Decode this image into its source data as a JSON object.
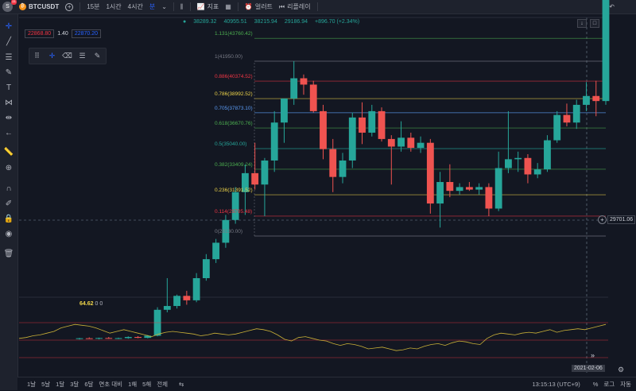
{
  "topbar": {
    "avatar_letter": "S",
    "avatar_badge": "11",
    "symbol": "BTCUSDT",
    "timeframes": [
      "15분",
      "1시간",
      "4시간",
      "분"
    ],
    "indicators_label": "지표",
    "alert_label": "얼러트",
    "replay_label": "리플레이"
  },
  "inputs": {
    "price_red": "22868.80",
    "ratio": "1.40",
    "price_blue": "22870.20"
  },
  "ohlc": {
    "values": [
      "38289.32",
      "40955.51",
      "38215.94",
      "29186.94",
      "+896.70 (+2.34%)"
    ]
  },
  "fib_levels": [
    {
      "label": "1.131(43760.42)",
      "price": 43760.42,
      "color": "#4caf50"
    },
    {
      "label": "1(41950.00)",
      "price": 41950.0,
      "color": "#787b86"
    },
    {
      "label": "0.886(40374.52)",
      "price": 40374.52,
      "color": "#f23645"
    },
    {
      "label": "0.786(38992.52)",
      "price": 38992.52,
      "color": "#f0d64a"
    },
    {
      "label": "0.705(37873.10)",
      "price": 37873.1,
      "color": "#5b9cf6"
    },
    {
      "label": "0.618(36670.76)",
      "price": 36670.76,
      "color": "#4caf50"
    },
    {
      "label": "0.5(35040.00)",
      "price": 35040.0,
      "color": "#26a69a"
    },
    {
      "label": "0.382(33409.24)",
      "price": 33409.24,
      "color": "#4caf50"
    },
    {
      "label": "0.236(31391.52)",
      "price": 31391.52,
      "color": "#f0d64a"
    },
    {
      "label": "0.114(29705.48)",
      "price": 29705.48,
      "color": "#f23645"
    },
    {
      "label": "0(28130.00)",
      "price": 28130.0,
      "color": "#787b86"
    }
  ],
  "chart_data": {
    "type": "candlestick",
    "candles": [
      {
        "o": 20000,
        "h": 20080,
        "l": 19950,
        "c": 20050
      },
      {
        "o": 20050,
        "h": 20120,
        "l": 19990,
        "c": 20010
      },
      {
        "o": 20010,
        "h": 20100,
        "l": 19960,
        "c": 20070
      },
      {
        "o": 20070,
        "h": 20150,
        "l": 20000,
        "c": 20030
      },
      {
        "o": 20030,
        "h": 20100,
        "l": 19980,
        "c": 20060
      },
      {
        "o": 20060,
        "h": 20200,
        "l": 20010,
        "c": 20150
      },
      {
        "o": 20150,
        "h": 20220,
        "l": 20050,
        "c": 20080
      },
      {
        "o": 20080,
        "h": 20300,
        "l": 20040,
        "c": 20250
      },
      {
        "o": 20250,
        "h": 22500,
        "l": 20200,
        "c": 22300
      },
      {
        "o": 22300,
        "h": 24800,
        "l": 22100,
        "c": 22600
      },
      {
        "o": 22600,
        "h": 23500,
        "l": 22400,
        "c": 23400
      },
      {
        "o": 23400,
        "h": 23800,
        "l": 22700,
        "c": 23050
      },
      {
        "o": 23050,
        "h": 25200,
        "l": 22900,
        "c": 24800
      },
      {
        "o": 24800,
        "h": 26700,
        "l": 24600,
        "c": 26300
      },
      {
        "o": 26300,
        "h": 27900,
        "l": 26000,
        "c": 27600
      },
      {
        "o": 27600,
        "h": 29800,
        "l": 27200,
        "c": 29400
      },
      {
        "o": 29400,
        "h": 32000,
        "l": 29100,
        "c": 31600
      },
      {
        "o": 31600,
        "h": 33800,
        "l": 29800,
        "c": 33100
      },
      {
        "o": 33100,
        "h": 35500,
        "l": 31800,
        "c": 32200
      },
      {
        "o": 32200,
        "h": 34300,
        "l": 29700,
        "c": 34100
      },
      {
        "o": 34100,
        "h": 38000,
        "l": 33200,
        "c": 37100
      },
      {
        "o": 37100,
        "h": 39000,
        "l": 35500,
        "c": 39000
      },
      {
        "o": 39000,
        "h": 41950,
        "l": 38500,
        "c": 40600
      },
      {
        "o": 40600,
        "h": 40900,
        "l": 39300,
        "c": 40100
      },
      {
        "o": 40100,
        "h": 40400,
        "l": 37900,
        "c": 38000
      },
      {
        "o": 38000,
        "h": 38500,
        "l": 34200,
        "c": 35000
      },
      {
        "o": 35000,
        "h": 35800,
        "l": 31600,
        "c": 32800
      },
      {
        "o": 32800,
        "h": 34700,
        "l": 32300,
        "c": 34100
      },
      {
        "o": 34100,
        "h": 37900,
        "l": 33500,
        "c": 37500
      },
      {
        "o": 37500,
        "h": 38700,
        "l": 35400,
        "c": 36300
      },
      {
        "o": 36300,
        "h": 38500,
        "l": 36000,
        "c": 38000
      },
      {
        "o": 38000,
        "h": 38300,
        "l": 35600,
        "c": 35800
      },
      {
        "o": 35800,
        "h": 36100,
        "l": 32200,
        "c": 35200
      },
      {
        "o": 35200,
        "h": 37200,
        "l": 34800,
        "c": 35900
      },
      {
        "o": 35900,
        "h": 36300,
        "l": 34800,
        "c": 35100
      },
      {
        "o": 35100,
        "h": 36000,
        "l": 34700,
        "c": 35500
      },
      {
        "o": 35500,
        "h": 35800,
        "l": 29900,
        "c": 30700
      },
      {
        "o": 30700,
        "h": 33200,
        "l": 28800,
        "c": 32400
      },
      {
        "o": 32400,
        "h": 33800,
        "l": 31200,
        "c": 31700
      },
      {
        "o": 31700,
        "h": 32300,
        "l": 31400,
        "c": 32000
      },
      {
        "o": 32000,
        "h": 32400,
        "l": 31700,
        "c": 31800
      },
      {
        "o": 31800,
        "h": 32300,
        "l": 31400,
        "c": 32000
      },
      {
        "o": 32000,
        "h": 32300,
        "l": 29700,
        "c": 30300
      },
      {
        "o": 30300,
        "h": 34800,
        "l": 30100,
        "c": 33500
      },
      {
        "o": 33500,
        "h": 38000,
        "l": 33100,
        "c": 34200
      },
      {
        "o": 34200,
        "h": 34800,
        "l": 33200,
        "c": 34300
      },
      {
        "o": 34300,
        "h": 34600,
        "l": 32300,
        "c": 33000
      },
      {
        "o": 33000,
        "h": 33900,
        "l": 32700,
        "c": 33400
      },
      {
        "o": 33400,
        "h": 36100,
        "l": 33200,
        "c": 35700
      },
      {
        "o": 35700,
        "h": 38000,
        "l": 35500,
        "c": 37700
      },
      {
        "o": 37700,
        "h": 38600,
        "l": 36800,
        "c": 37100
      },
      {
        "o": 37100,
        "h": 38900,
        "l": 36600,
        "c": 38500
      },
      {
        "o": 38500,
        "h": 40300,
        "l": 38000,
        "c": 39200
      },
      {
        "o": 39200,
        "h": 40400,
        "l": 37600,
        "c": 38800
      },
      {
        "o": 38800,
        "h": 47500,
        "l": 38500,
        "c": 47000
      }
    ],
    "rsi": [
      52,
      53,
      55,
      56,
      58,
      60,
      64,
      66,
      68,
      67,
      66,
      64,
      61,
      58,
      60,
      62,
      60,
      58,
      56,
      54,
      57,
      59,
      60,
      59,
      58,
      57,
      55,
      56,
      58,
      57,
      56,
      57,
      59,
      61,
      63,
      62,
      60,
      56,
      51,
      49,
      53,
      54,
      52,
      50,
      49,
      46,
      44,
      46,
      45,
      43,
      40,
      41,
      42,
      40,
      38,
      39,
      41,
      40,
      43,
      45,
      46,
      44,
      47,
      49,
      48,
      46,
      45,
      52,
      56,
      58,
      57,
      56,
      58,
      59,
      58,
      60,
      62,
      59,
      61,
      62,
      63,
      62,
      64,
      66,
      68
    ],
    "rsi_value": "64.62",
    "rsi_extra": [
      "0",
      "0"
    ]
  },
  "current_price_tag": "29701.06",
  "date_tag": "2021-02-06",
  "bottombar": {
    "ranges": [
      "1날",
      "5날",
      "1달",
      "3달",
      "6달",
      "연초 대비",
      "1해",
      "5해",
      "전체"
    ],
    "time": "13:15:13 (UTC+9)",
    "percent": "%",
    "log": "로그",
    "auto": "자동"
  }
}
